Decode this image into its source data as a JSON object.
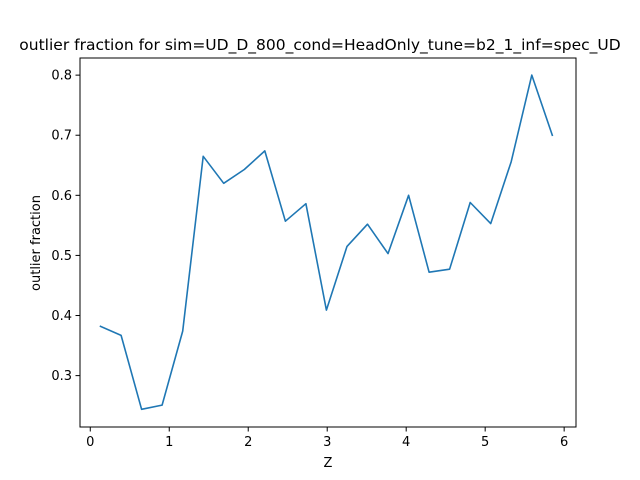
{
  "chart_data": {
    "type": "line",
    "title": "outlier fraction for sim=UD_D_800_cond=HeadOnly_tune=b2_1_inf=spec_UD",
    "xlabel": "Z",
    "ylabel": "outlier fraction",
    "xlim": [
      -0.13,
      6.15
    ],
    "ylim": [
      0.2145,
      0.8285
    ],
    "xticks": [
      0,
      1,
      2,
      3,
      4,
      5,
      6
    ],
    "yticks": [
      0.3,
      0.4,
      0.5,
      0.6,
      0.7,
      0.8
    ],
    "xtick_labels": [
      "0",
      "1",
      "2",
      "3",
      "4",
      "5",
      "6"
    ],
    "ytick_labels": [
      "0.3",
      "0.4",
      "0.5",
      "0.6",
      "0.7",
      "0.8"
    ],
    "grid": false,
    "legend": "none",
    "series": [
      {
        "color": "#1f77b4",
        "x": [
          0.13,
          0.39,
          0.65,
          0.91,
          1.17,
          1.43,
          1.69,
          1.95,
          2.21,
          2.47,
          2.73,
          2.99,
          3.25,
          3.51,
          3.77,
          4.03,
          4.29,
          4.55,
          4.81,
          5.07,
          5.33,
          5.59,
          5.85
        ],
        "y": [
          0.382,
          0.367,
          0.244,
          0.251,
          0.374,
          0.665,
          0.62,
          0.643,
          0.674,
          0.557,
          0.586,
          0.409,
          0.515,
          0.552,
          0.503,
          0.6,
          0.472,
          0.477,
          0.588,
          0.553,
          0.656,
          0.8,
          0.7
        ]
      }
    ]
  }
}
